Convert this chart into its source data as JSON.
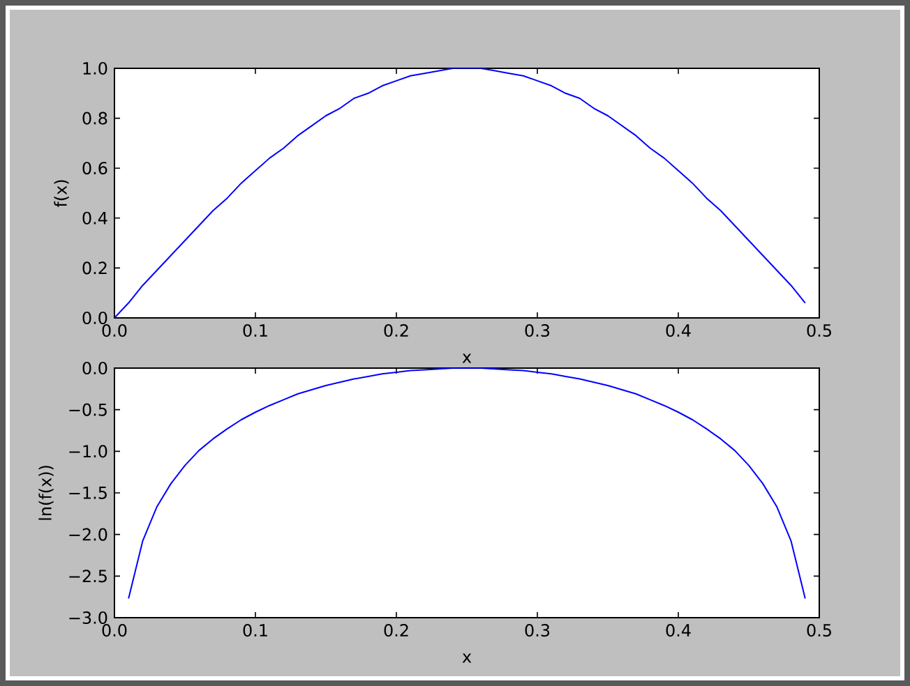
{
  "chart_data": [
    {
      "type": "line",
      "xlabel": "x",
      "ylabel": "f(x)",
      "color": "#0000ff",
      "x": [
        0,
        0.01,
        0.02,
        0.03,
        0.04,
        0.05,
        0.06,
        0.07,
        0.08,
        0.09,
        0.1,
        0.11,
        0.12,
        0.13,
        0.14,
        0.15,
        0.16,
        0.17,
        0.18,
        0.19,
        0.2,
        0.21,
        0.22,
        0.23,
        0.24,
        0.25,
        0.26,
        0.27,
        0.28,
        0.29,
        0.3,
        0.31,
        0.32,
        0.33,
        0.34,
        0.35,
        0.36,
        0.37,
        0.38,
        0.39,
        0.4,
        0.41,
        0.42,
        0.43,
        0.44,
        0.45,
        0.46,
        0.47,
        0.48,
        0.49
      ],
      "values": [
        0.0,
        0.06,
        0.13,
        0.19,
        0.25,
        0.31,
        0.37,
        0.43,
        0.48,
        0.54,
        0.59,
        0.64,
        0.68,
        0.73,
        0.77,
        0.81,
        0.84,
        0.88,
        0.9,
        0.93,
        0.95,
        0.97,
        0.98,
        0.99,
        1.0,
        1.0,
        1.0,
        0.99,
        0.98,
        0.97,
        0.95,
        0.93,
        0.9,
        0.88,
        0.84,
        0.81,
        0.77,
        0.73,
        0.68,
        0.64,
        0.59,
        0.54,
        0.48,
        0.43,
        0.37,
        0.31,
        0.25,
        0.19,
        0.13,
        0.06
      ],
      "xlim": [
        0,
        0.5
      ],
      "ylim": [
        0,
        1
      ],
      "xticks": [
        {
          "value": 0,
          "label": "0.0"
        },
        {
          "value": 0.1,
          "label": "0.1"
        },
        {
          "value": 0.2,
          "label": "0.2"
        },
        {
          "value": 0.3,
          "label": "0.3"
        },
        {
          "value": 0.4,
          "label": "0.4"
        },
        {
          "value": 0.5,
          "label": "0.5"
        }
      ],
      "yticks": [
        {
          "value": 0,
          "label": "0.0"
        },
        {
          "value": 0.2,
          "label": "0.2"
        },
        {
          "value": 0.4,
          "label": "0.4"
        },
        {
          "value": 0.6,
          "label": "0.6"
        },
        {
          "value": 0.8,
          "label": "0.8"
        },
        {
          "value": 1,
          "label": "1.0"
        }
      ]
    },
    {
      "type": "line",
      "xlabel": "x",
      "ylabel": "ln(f(x))",
      "color": "#0000ff",
      "x": [
        0.01,
        0.02,
        0.03,
        0.04,
        0.05,
        0.06,
        0.07,
        0.08,
        0.09,
        0.1,
        0.11,
        0.12,
        0.13,
        0.14,
        0.15,
        0.16,
        0.17,
        0.18,
        0.19,
        0.2,
        0.21,
        0.22,
        0.23,
        0.24,
        0.25,
        0.26,
        0.27,
        0.28,
        0.29,
        0.3,
        0.31,
        0.32,
        0.33,
        0.34,
        0.35,
        0.36,
        0.37,
        0.38,
        0.39,
        0.4,
        0.41,
        0.42,
        0.43,
        0.44,
        0.45,
        0.46,
        0.47,
        0.48,
        0.49
      ],
      "values": [
        -2.77,
        -2.08,
        -1.67,
        -1.39,
        -1.17,
        -0.99,
        -0.85,
        -0.73,
        -0.62,
        -0.53,
        -0.45,
        -0.38,
        -0.31,
        -0.26,
        -0.21,
        -0.17,
        -0.13,
        -0.1,
        -0.07,
        -0.05,
        -0.03,
        -0.02,
        -0.01,
        0.0,
        0.0,
        0.0,
        -0.01,
        -0.02,
        -0.03,
        -0.05,
        -0.07,
        -0.1,
        -0.13,
        -0.17,
        -0.21,
        -0.26,
        -0.31,
        -0.38,
        -0.45,
        -0.53,
        -0.62,
        -0.73,
        -0.85,
        -0.99,
        -1.17,
        -1.39,
        -1.67,
        -2.08,
        -2.77
      ],
      "xlim": [
        0,
        0.5
      ],
      "ylim": [
        -3,
        0
      ],
      "xticks": [
        {
          "value": 0,
          "label": "0.0"
        },
        {
          "value": 0.1,
          "label": "0.1"
        },
        {
          "value": 0.2,
          "label": "0.2"
        },
        {
          "value": 0.3,
          "label": "0.3"
        },
        {
          "value": 0.4,
          "label": "0.4"
        },
        {
          "value": 0.5,
          "label": "0.5"
        }
      ],
      "yticks": [
        {
          "value": -3,
          "label": "−3.0"
        },
        {
          "value": -2.5,
          "label": "−2.5"
        },
        {
          "value": -2,
          "label": "−2.0"
        },
        {
          "value": -1.5,
          "label": "−1.5"
        },
        {
          "value": -1,
          "label": "−1.0"
        },
        {
          "value": -0.5,
          "label": "−0.5"
        },
        {
          "value": 0,
          "label": "0.0"
        }
      ]
    }
  ]
}
